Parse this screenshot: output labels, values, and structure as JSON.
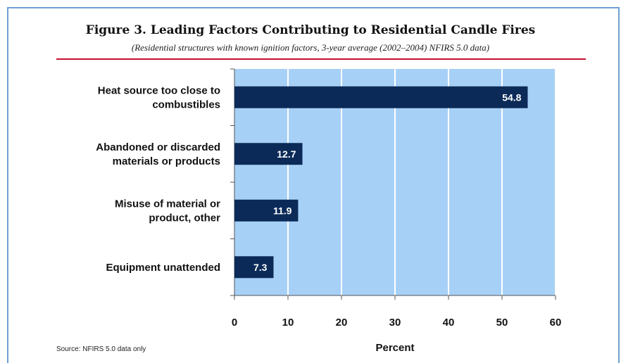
{
  "title": "Figure 3. Leading Factors Contributing to Residential Candle Fires",
  "subtitle": "(Residential structures with known ignition factors, 3-year average (2002–2004) NFIRS 5.0 data)",
  "source": "Source: NFIRS 5.0 data only",
  "colors": {
    "plot_background": "#a7d0f7",
    "bar": "#0b2a58",
    "gridline": "#ffffff",
    "title_rule": "#c8102e",
    "frame": "#6e9fd0"
  },
  "chart_data": {
    "type": "bar",
    "orientation": "horizontal",
    "title": "Figure 3. Leading Factors Contributing to Residential Candle Fires",
    "subtitle": "(Residential structures with known ignition factors, 3-year average (2002–2004) NFIRS 5.0 data)",
    "categories": [
      [
        "Heat source too close to",
        "combustibles"
      ],
      [
        "Abandoned or discarded",
        "materials or products"
      ],
      [
        "Misuse of material or",
        "product, other"
      ],
      [
        "Equipment unattended"
      ]
    ],
    "values": [
      54.8,
      12.7,
      11.9,
      7.3
    ],
    "data_labels": [
      "54.8",
      "12.7",
      "11.9",
      "7.3"
    ],
    "xlabel": "Percent",
    "ylabel": "",
    "xlim": [
      0,
      60
    ],
    "xticks": [
      0,
      10,
      20,
      30,
      40,
      50,
      60
    ],
    "xtick_labels": [
      "0",
      "10",
      "20",
      "30",
      "40",
      "50",
      "60"
    ],
    "grid": true,
    "legend": "none"
  }
}
